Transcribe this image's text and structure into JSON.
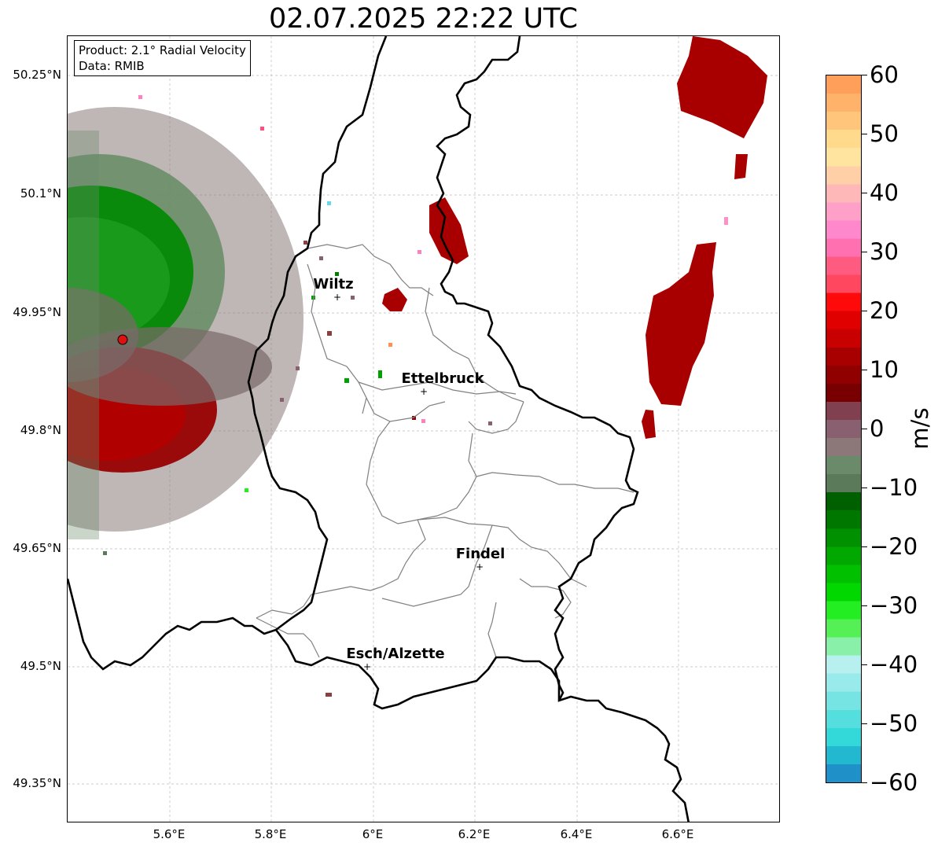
{
  "title": "02.07.2025 22:22 UTC",
  "info": {
    "product": "Product: 2.1° Radial Velocity",
    "data": "Data: RMIB"
  },
  "lat_labels": [
    "50.25°N",
    "50.1°N",
    "49.95°N",
    "49.8°N",
    "49.65°N",
    "49.5°N",
    "49.35°N"
  ],
  "lon_labels": [
    "5.6°E",
    "5.8°E",
    "6°E",
    "6.2°E",
    "6.4°E",
    "6.6°E"
  ],
  "cities": [
    {
      "name": "Wiltz",
      "marker": "+"
    },
    {
      "name": "Ettelbruck",
      "marker": "+"
    },
    {
      "name": "Findel",
      "marker": "+"
    },
    {
      "name": "Esch/Alzette",
      "marker": "+"
    }
  ],
  "colorbar": {
    "unit": "m/s",
    "ticks": [
      "60",
      "50",
      "40",
      "30",
      "20",
      "10",
      "0",
      "−10",
      "−20",
      "−30",
      "−40",
      "−50",
      "−60"
    ],
    "colors": [
      "#ff9f5a",
      "#ffb26a",
      "#ffc57a",
      "#ffd98c",
      "#ffe4a0",
      "#ffd0a8",
      "#ffb8b8",
      "#ffa0c8",
      "#ff88cc",
      "#ff70b0",
      "#ff5a80",
      "#ff4860",
      "#ff0a0a",
      "#e00000",
      "#c80000",
      "#a80000",
      "#900000",
      "#780000",
      "#804050",
      "#886070",
      "#8c7878",
      "#6a8a6a",
      "#5a7a5a",
      "#006000",
      "#007800",
      "#009000",
      "#00a800",
      "#00c000",
      "#00d800",
      "#22ee22",
      "#55f055",
      "#88f0a8",
      "#b8f0f0",
      "#99eaea",
      "#77e4e4",
      "#55dede",
      "#33d8d8",
      "#22b8d0",
      "#2090c8"
    ]
  },
  "legend_colors": {
    "station": "#e01010",
    "approaching": "#008000",
    "receding": "#a00000",
    "border_country": "#000000",
    "border_canton": "#808080"
  }
}
